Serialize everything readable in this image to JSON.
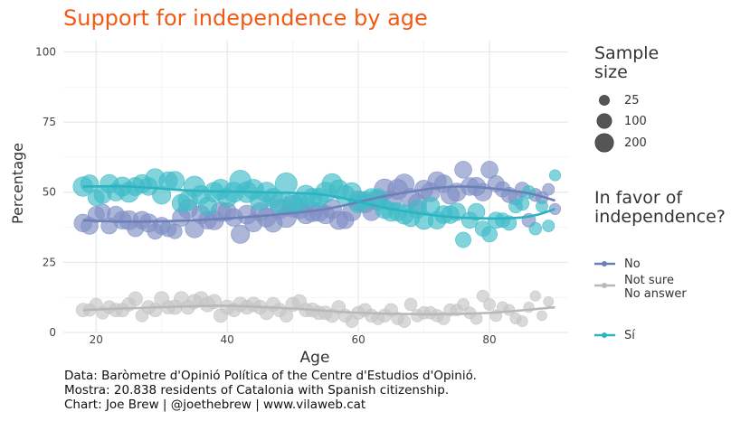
{
  "chart_data": {
    "type": "scatter",
    "title": "Support for independence by age",
    "xlabel": "Age",
    "ylabel": "Percentage",
    "xlim": [
      15,
      92
    ],
    "ylim": [
      0,
      104
    ],
    "x_ticks": [
      20,
      40,
      60,
      80
    ],
    "y_ticks": [
      0,
      25,
      50,
      75,
      100
    ],
    "grid": true,
    "legend_position": "right",
    "size_legend": {
      "title": "Sample size",
      "entries": [
        {
          "label": "25",
          "value": 25
        },
        {
          "label": "100",
          "value": 100
        },
        {
          "label": "200",
          "value": 200
        }
      ]
    },
    "color_legend": {
      "title": "In favor of independence?",
      "entries": [
        {
          "label": "No",
          "color": "#6b7fb8"
        },
        {
          "label": "Not sure\nNo answer",
          "color": "#b8b8b8"
        },
        {
          "label": "Sí",
          "color": "#2ab3c0"
        }
      ]
    },
    "series": [
      {
        "name": "No",
        "color": "#7f8fc4",
        "trend": [
          [
            18,
            40
          ],
          [
            25,
            39.5
          ],
          [
            35,
            40
          ],
          [
            45,
            41.5
          ],
          [
            55,
            44
          ],
          [
            65,
            49
          ],
          [
            75,
            52
          ],
          [
            85,
            50
          ],
          [
            90,
            47
          ]
        ],
        "points": [
          [
            18,
            39,
            90
          ],
          [
            19,
            38,
            80
          ],
          [
            20,
            42,
            70
          ],
          [
            21,
            43,
            60
          ],
          [
            22,
            38,
            70
          ],
          [
            23,
            42,
            80
          ],
          [
            24,
            40,
            90
          ],
          [
            25,
            40,
            110
          ],
          [
            26,
            37,
            70
          ],
          [
            27,
            40,
            90
          ],
          [
            28,
            39,
            100
          ],
          [
            29,
            36,
            60
          ],
          [
            30,
            38,
            80
          ],
          [
            31,
            37,
            70
          ],
          [
            32,
            36,
            50
          ],
          [
            33,
            41,
            90
          ],
          [
            34,
            44,
            110
          ],
          [
            35,
            37,
            100
          ],
          [
            36,
            42,
            100
          ],
          [
            37,
            40,
            90
          ],
          [
            38,
            40,
            110
          ],
          [
            39,
            43,
            120
          ],
          [
            40,
            43,
            100
          ],
          [
            41,
            41,
            90
          ],
          [
            42,
            35,
            100
          ],
          [
            43,
            42,
            110
          ],
          [
            44,
            39,
            90
          ],
          [
            45,
            43,
            100
          ],
          [
            46,
            41,
            110
          ],
          [
            47,
            39,
            100
          ],
          [
            48,
            44,
            120
          ],
          [
            49,
            41,
            130
          ],
          [
            50,
            45,
            160
          ],
          [
            51,
            44,
            120
          ],
          [
            52,
            42,
            100
          ],
          [
            53,
            43,
            120
          ],
          [
            54,
            43,
            110
          ],
          [
            55,
            42,
            100
          ],
          [
            56,
            44,
            110
          ],
          [
            57,
            40,
            100
          ],
          [
            58,
            40,
            80
          ],
          [
            59,
            43,
            100
          ],
          [
            60,
            47,
            120
          ],
          [
            61,
            46,
            110
          ],
          [
            62,
            43,
            90
          ],
          [
            63,
            47,
            110
          ],
          [
            64,
            51,
            140
          ],
          [
            65,
            47,
            130
          ],
          [
            66,
            51,
            130
          ],
          [
            67,
            53,
            120
          ],
          [
            68,
            48,
            110
          ],
          [
            69,
            46,
            100
          ],
          [
            70,
            51,
            100
          ],
          [
            71,
            50,
            110
          ],
          [
            72,
            54,
            100
          ],
          [
            73,
            53,
            90
          ],
          [
            74,
            49,
            100
          ],
          [
            75,
            50,
            100
          ],
          [
            76,
            58,
            80
          ],
          [
            77,
            52,
            90
          ],
          [
            78,
            52,
            100
          ],
          [
            79,
            50,
            90
          ],
          [
            80,
            58,
            80
          ],
          [
            81,
            53,
            70
          ],
          [
            82,
            51,
            60
          ],
          [
            83,
            49,
            60
          ],
          [
            84,
            48,
            50
          ],
          [
            85,
            51,
            50
          ],
          [
            86,
            40,
            40
          ],
          [
            87,
            49,
            35
          ],
          [
            88,
            48,
            30
          ],
          [
            89,
            51,
            25
          ],
          [
            90,
            44,
            20
          ]
        ]
      },
      {
        "name": "Not sure / No answer",
        "color": "#c4c4c4",
        "trend": [
          [
            18,
            8
          ],
          [
            30,
            9
          ],
          [
            40,
            9.5
          ],
          [
            50,
            8.5
          ],
          [
            60,
            7
          ],
          [
            70,
            6.5
          ],
          [
            80,
            7
          ],
          [
            90,
            9
          ]
        ],
        "points": [
          [
            18,
            8,
            40
          ],
          [
            19,
            8,
            30
          ],
          [
            20,
            10,
            30
          ],
          [
            21,
            7,
            30
          ],
          [
            22,
            9,
            35
          ],
          [
            23,
            8,
            40
          ],
          [
            24,
            8,
            40
          ],
          [
            25,
            10,
            40
          ],
          [
            26,
            12,
            45
          ],
          [
            27,
            6,
            30
          ],
          [
            28,
            9,
            40
          ],
          [
            29,
            8,
            40
          ],
          [
            30,
            12,
            50
          ],
          [
            31,
            9,
            40
          ],
          [
            32,
            9,
            50
          ],
          [
            33,
            12,
            50
          ],
          [
            34,
            9,
            45
          ],
          [
            35,
            11,
            50
          ],
          [
            36,
            12,
            50
          ],
          [
            37,
            10,
            55
          ],
          [
            38,
            11,
            50
          ],
          [
            39,
            6,
            40
          ],
          [
            40,
            9,
            50
          ],
          [
            41,
            8,
            40
          ],
          [
            42,
            10,
            50
          ],
          [
            43,
            9,
            45
          ],
          [
            44,
            10,
            50
          ],
          [
            45,
            9,
            45
          ],
          [
            46,
            7,
            40
          ],
          [
            47,
            10,
            45
          ],
          [
            48,
            8,
            40
          ],
          [
            49,
            6,
            35
          ],
          [
            50,
            10,
            45
          ],
          [
            51,
            11,
            45
          ],
          [
            52,
            8,
            40
          ],
          [
            53,
            8,
            45
          ],
          [
            54,
            7,
            40
          ],
          [
            55,
            7,
            40
          ],
          [
            56,
            6,
            40
          ],
          [
            57,
            9,
            40
          ],
          [
            58,
            6,
            35
          ],
          [
            59,
            4,
            30
          ],
          [
            60,
            7,
            35
          ],
          [
            61,
            8,
            35
          ],
          [
            62,
            6,
            35
          ],
          [
            63,
            5,
            30
          ],
          [
            64,
            6,
            35
          ],
          [
            65,
            8,
            35
          ],
          [
            66,
            5,
            30
          ],
          [
            67,
            4,
            30
          ],
          [
            68,
            10,
            30
          ],
          [
            69,
            6,
            30
          ],
          [
            70,
            7,
            30
          ],
          [
            71,
            7,
            30
          ],
          [
            72,
            6,
            30
          ],
          [
            73,
            5,
            30
          ],
          [
            74,
            8,
            30
          ],
          [
            75,
            8,
            25
          ],
          [
            76,
            10,
            25
          ],
          [
            77,
            7,
            25
          ],
          [
            78,
            5,
            25
          ],
          [
            79,
            13,
            25
          ],
          [
            80,
            10,
            25
          ],
          [
            81,
            6,
            25
          ],
          [
            82,
            9,
            20
          ],
          [
            83,
            8,
            20
          ],
          [
            84,
            5,
            20
          ],
          [
            85,
            4,
            18
          ],
          [
            86,
            9,
            15
          ],
          [
            87,
            13,
            15
          ],
          [
            88,
            6,
            12
          ],
          [
            89,
            11,
            12
          ]
        ]
      },
      {
        "name": "Sí",
        "color": "#3fbcc8",
        "trend": [
          [
            18,
            52
          ],
          [
            25,
            52
          ],
          [
            35,
            50.5
          ],
          [
            45,
            50
          ],
          [
            55,
            49
          ],
          [
            65,
            44
          ],
          [
            75,
            41
          ],
          [
            85,
            41
          ],
          [
            90,
            44
          ]
        ],
        "points": [
          [
            18,
            52,
            120
          ],
          [
            19,
            53,
            90
          ],
          [
            20,
            48,
            70
          ],
          [
            21,
            49,
            80
          ],
          [
            22,
            53,
            100
          ],
          [
            23,
            50,
            90
          ],
          [
            24,
            52,
            110
          ],
          [
            25,
            50,
            130
          ],
          [
            26,
            52,
            100
          ],
          [
            27,
            53,
            100
          ],
          [
            28,
            52,
            90
          ],
          [
            29,
            55,
            110
          ],
          [
            30,
            49,
            100
          ],
          [
            31,
            54,
            100
          ],
          [
            32,
            54,
            110
          ],
          [
            33,
            46,
            100
          ],
          [
            34,
            47,
            120
          ],
          [
            35,
            52,
            140
          ],
          [
            36,
            49,
            110
          ],
          [
            37,
            45,
            100
          ],
          [
            38,
            50,
            120
          ],
          [
            39,
            51,
            130
          ],
          [
            40,
            48,
            110
          ],
          [
            41,
            50,
            130
          ],
          [
            42,
            54,
            150
          ],
          [
            43,
            50,
            140
          ],
          [
            44,
            51,
            130
          ],
          [
            45,
            47,
            120
          ],
          [
            46,
            50,
            130
          ],
          [
            47,
            48,
            110
          ],
          [
            48,
            46,
            120
          ],
          [
            49,
            53,
            160
          ],
          [
            50,
            46,
            130
          ],
          [
            51,
            46,
            120
          ],
          [
            52,
            49,
            120
          ],
          [
            53,
            48,
            110
          ],
          [
            54,
            48,
            110
          ],
          [
            55,
            50,
            130
          ],
          [
            56,
            53,
            130
          ],
          [
            57,
            51,
            110
          ],
          [
            58,
            49,
            110
          ],
          [
            59,
            50,
            110
          ],
          [
            60,
            46,
            110
          ],
          [
            61,
            47,
            100
          ],
          [
            62,
            48,
            100
          ],
          [
            63,
            48,
            100
          ],
          [
            64,
            44,
            110
          ],
          [
            65,
            43,
            110
          ],
          [
            66,
            43,
            100
          ],
          [
            67,
            42,
            110
          ],
          [
            68,
            41,
            100
          ],
          [
            69,
            44,
            100
          ],
          [
            70,
            40,
            100
          ],
          [
            71,
            45,
            100
          ],
          [
            72,
            40,
            90
          ],
          [
            73,
            42,
            90
          ],
          [
            74,
            42,
            90
          ],
          [
            75,
            43,
            90
          ],
          [
            76,
            33,
            60
          ],
          [
            77,
            40,
            70
          ],
          [
            78,
            43,
            80
          ],
          [
            79,
            37,
            60
          ],
          [
            80,
            35,
            60
          ],
          [
            81,
            40,
            70
          ],
          [
            82,
            40,
            50
          ],
          [
            83,
            39,
            50
          ],
          [
            84,
            45,
            40
          ],
          [
            85,
            46,
            40
          ],
          [
            86,
            50,
            35
          ],
          [
            87,
            37,
            30
          ],
          [
            88,
            45,
            25
          ],
          [
            89,
            38,
            25
          ],
          [
            90,
            56,
            20
          ]
        ]
      }
    ]
  },
  "caption": {
    "line1": "Data: Baròmetre d'Opinió Política of the Centre d'Estudios d'Opinió.",
    "line2": "Mostra: 20.838 residents of Catalonia with Spanish citizenship.",
    "line3": "Chart: Joe Brew | @joethebrew | www.vilaweb.cat"
  }
}
